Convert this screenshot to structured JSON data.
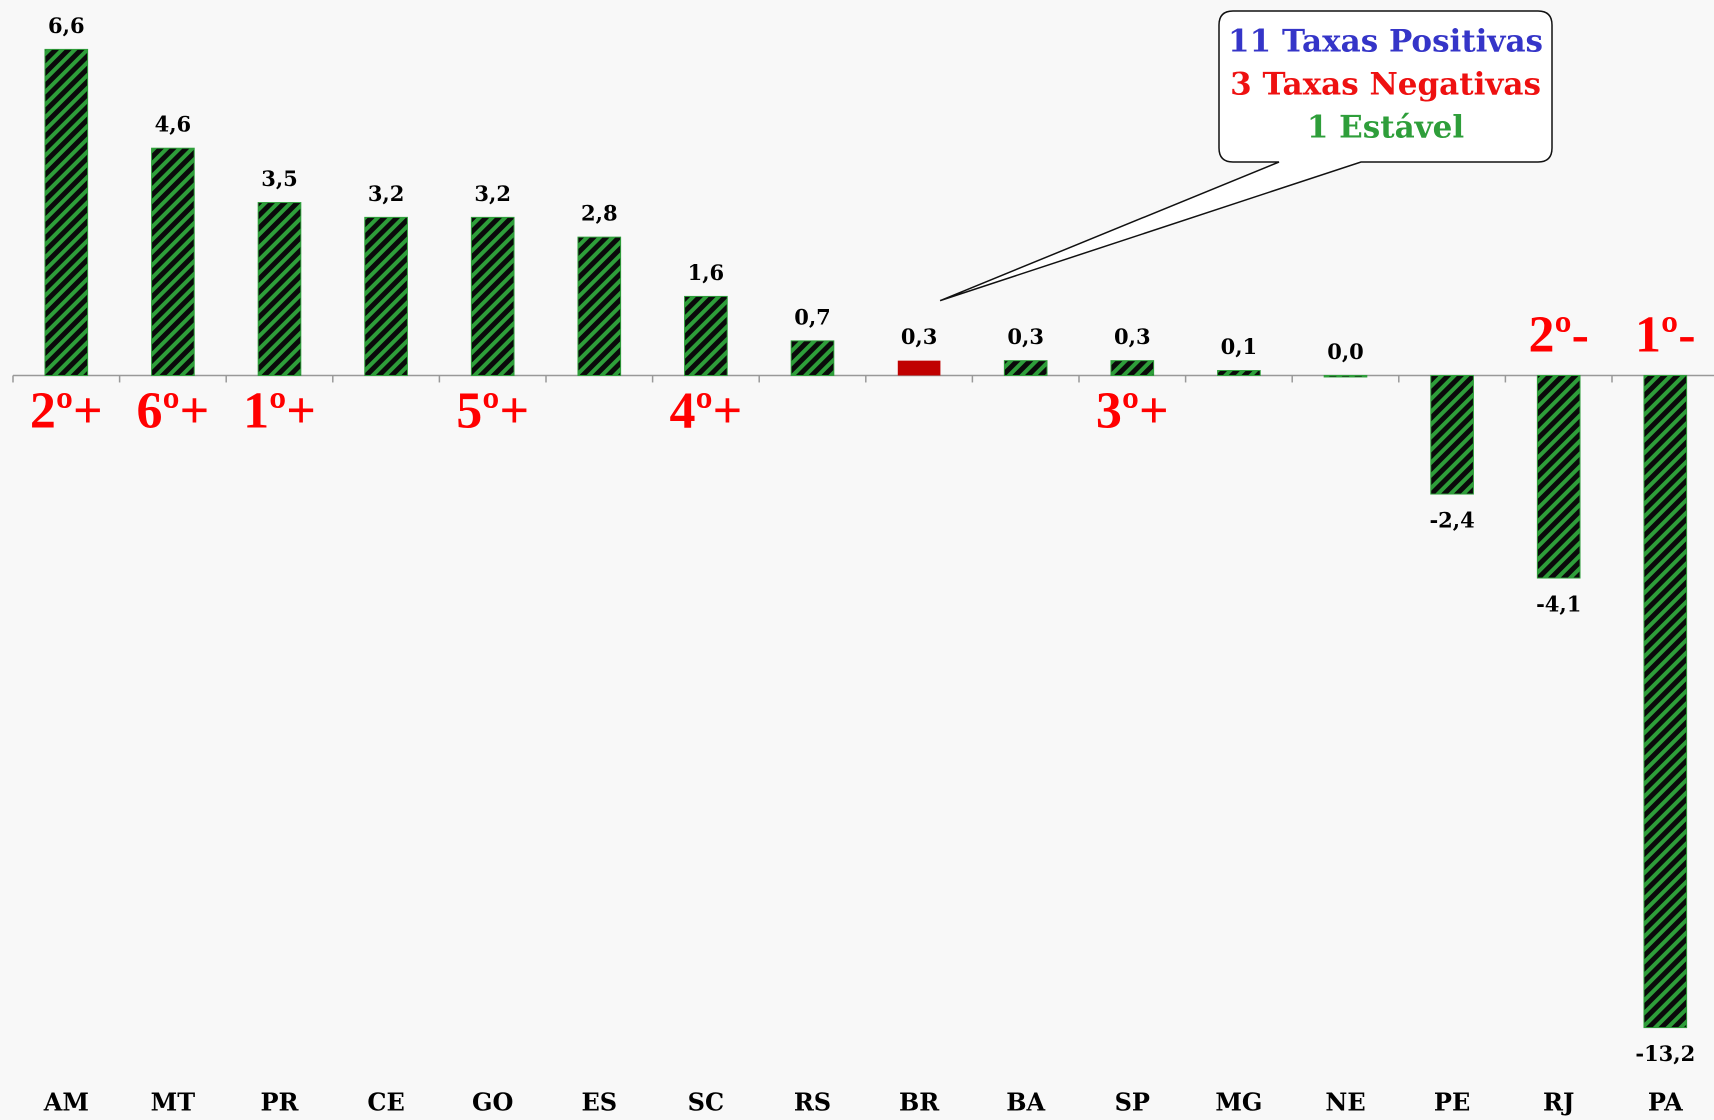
{
  "chart_data": {
    "type": "bar",
    "categories": [
      "AM",
      "MT",
      "PR",
      "CE",
      "GO",
      "ES",
      "SC",
      "RS",
      "BR",
      "BA",
      "SP",
      "MG",
      "NE",
      "PE",
      "RJ",
      "PA"
    ],
    "values": [
      6.6,
      4.6,
      3.5,
      3.2,
      3.2,
      2.8,
      1.6,
      0.7,
      0.3,
      0.3,
      0.3,
      0.1,
      0.0,
      -2.4,
      -4.1,
      -13.2
    ],
    "value_labels": [
      "6,6",
      "4,6",
      "3,5",
      "3,2",
      "3,2",
      "2,8",
      "1,6",
      "0,7",
      "0,3",
      "0,3",
      "0,3",
      "0,1",
      "0,0",
      "-2,4",
      "-4,1",
      "-13,2"
    ],
    "colors": [
      "#2e9e3a",
      "#2e9e3a",
      "#2e9e3a",
      "#2e9e3a",
      "#2e9e3a",
      "#2e9e3a",
      "#2e9e3a",
      "#2e9e3a",
      "#c00000",
      "#2e9e3a",
      "#2e9e3a",
      "#2e9e3a",
      "#2e9e3a",
      "#2e9e3a",
      "#2e9e3a",
      "#2e9e3a"
    ],
    "hatched": [
      true,
      true,
      true,
      true,
      true,
      true,
      true,
      true,
      false,
      true,
      true,
      true,
      true,
      true,
      true,
      true
    ],
    "ylim": [
      -14.2,
      7.6
    ],
    "annotations": [
      {
        "category": 0,
        "text": "2º+"
      },
      {
        "category": 1,
        "text": "6º+"
      },
      {
        "category": 2,
        "text": "1º+"
      },
      {
        "category": 4,
        "text": "5º+"
      },
      {
        "category": 6,
        "text": "4º+"
      },
      {
        "category": 10,
        "text": "3º+"
      },
      {
        "category": 14,
        "text": "2º-"
      },
      {
        "category": 15,
        "text": "1º-"
      }
    ],
    "callout": {
      "target": 8,
      "lines": [
        {
          "text": "11 Taxas Positivas",
          "color": "#3535c8"
        },
        {
          "text": "3 Taxas Negativas",
          "color": "#ee1111"
        },
        {
          "text": "1 Estável",
          "color": "#2e9e3a"
        }
      ]
    }
  }
}
